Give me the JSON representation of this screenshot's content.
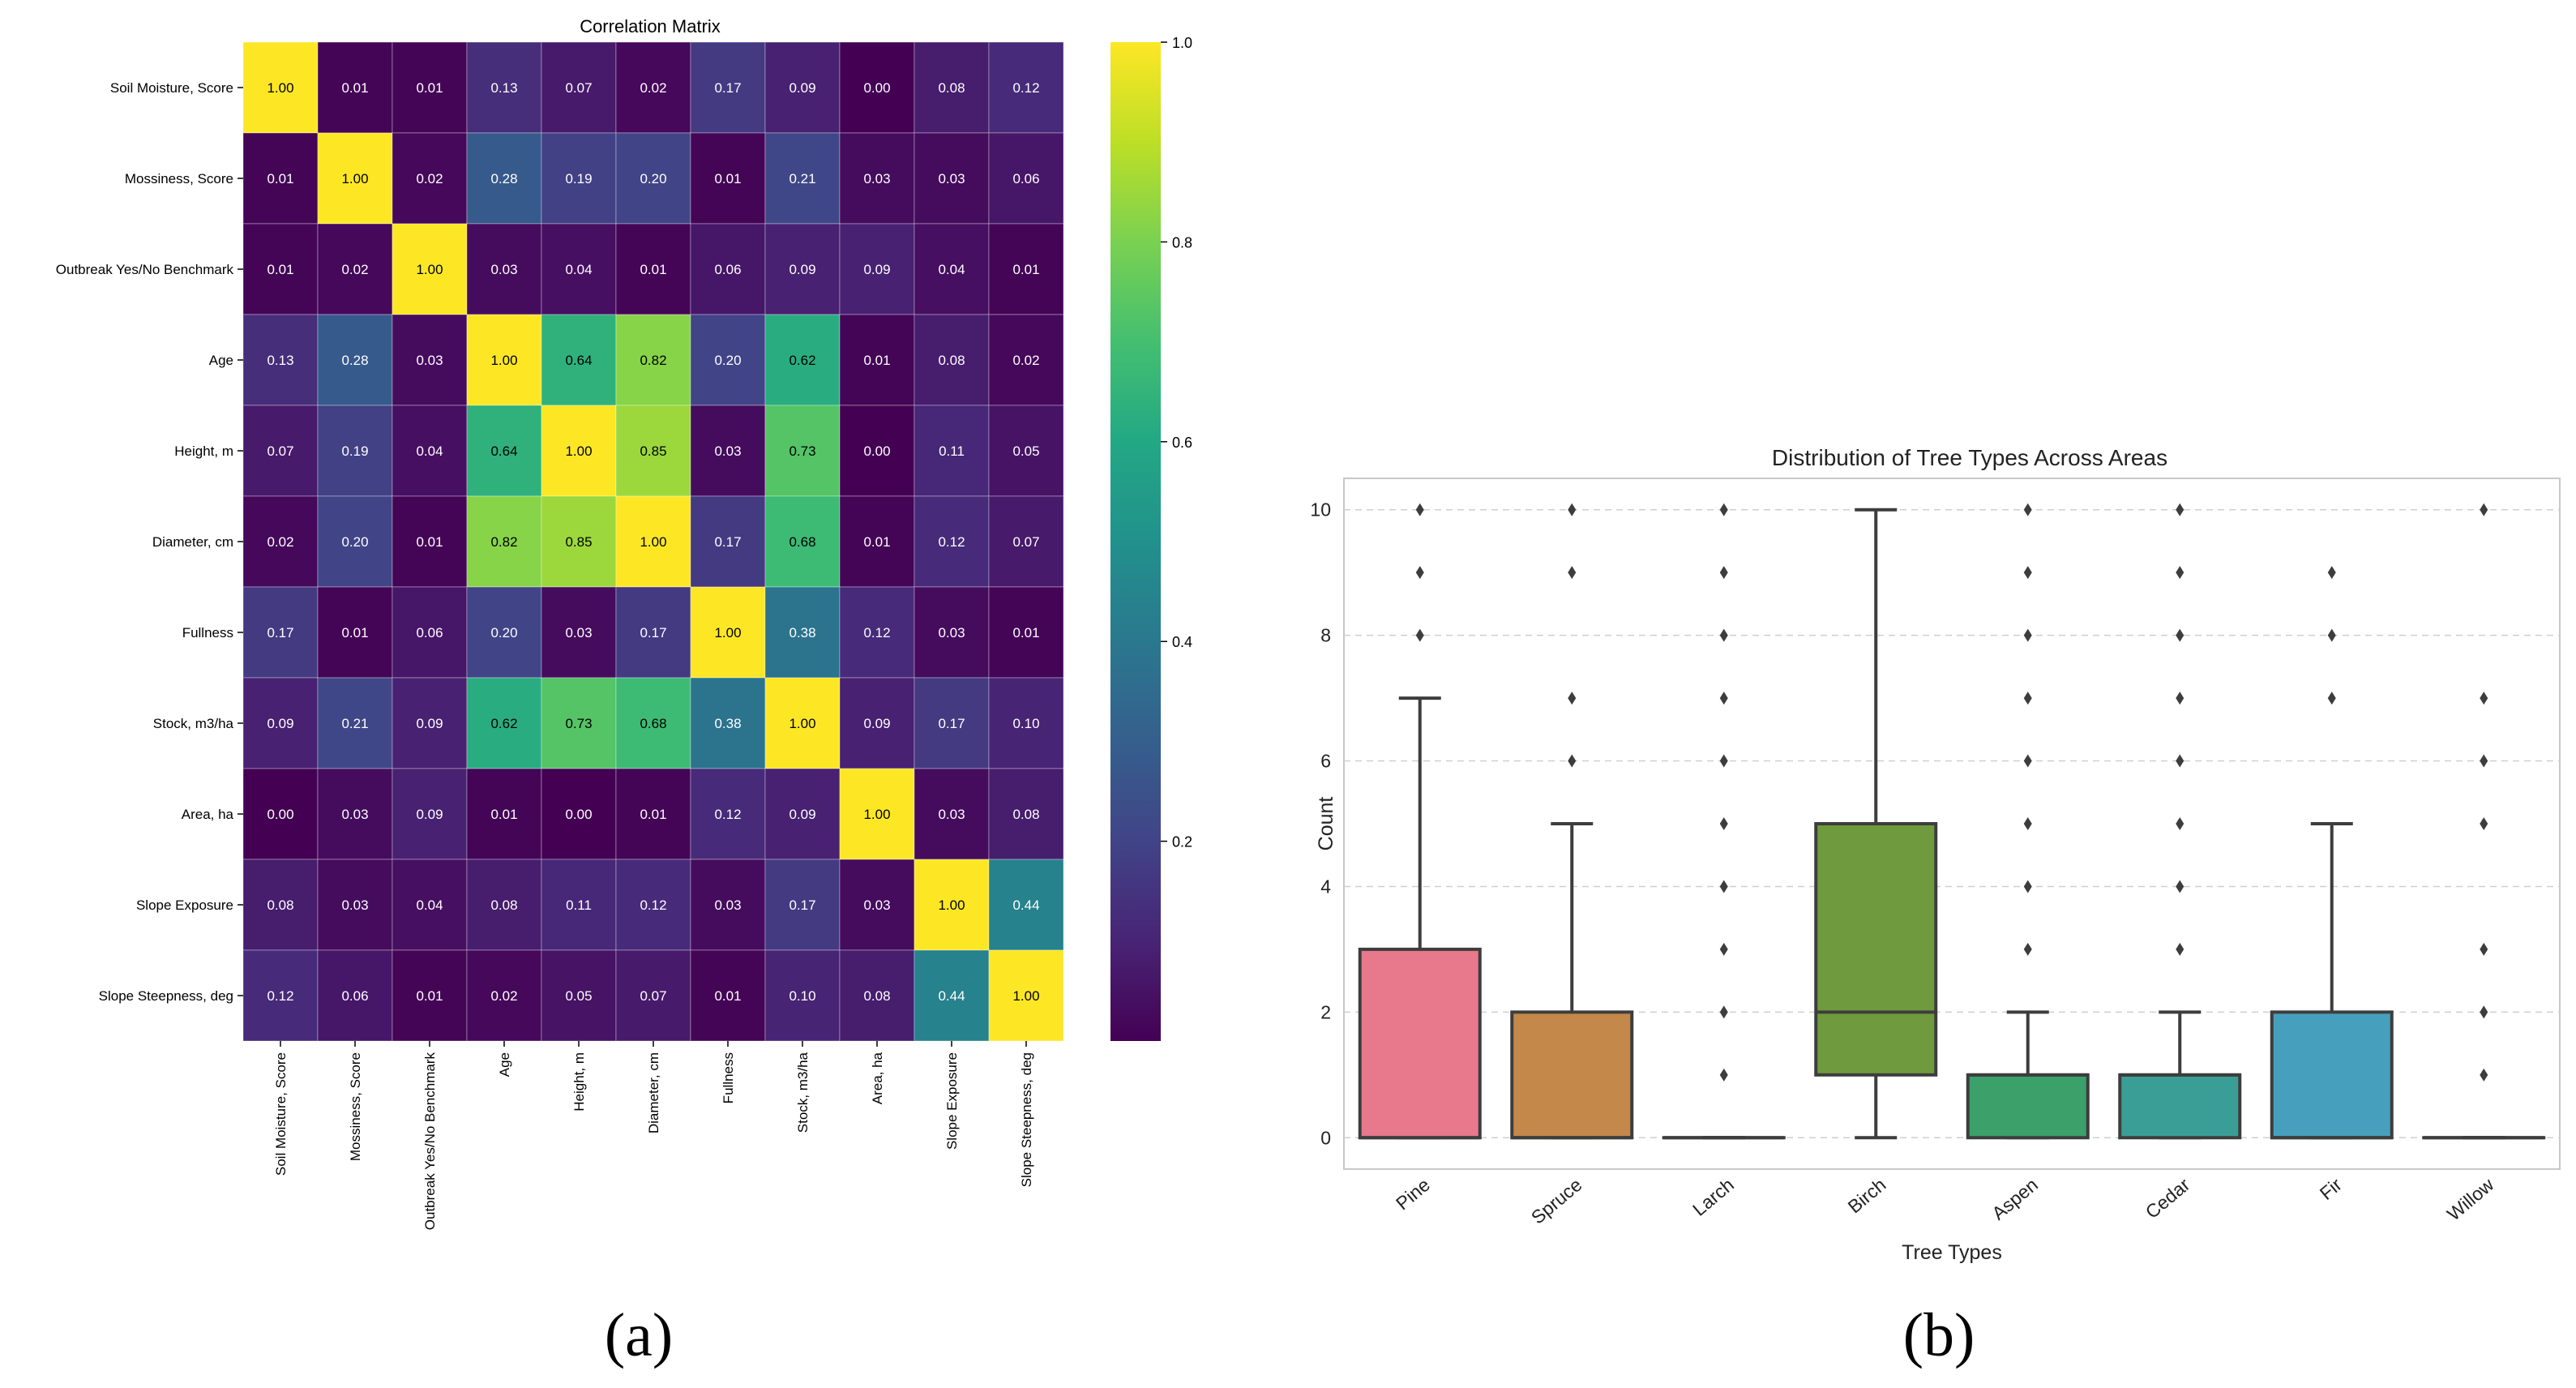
{
  "panel_labels": [
    "(a)",
    "(b)"
  ],
  "chart_data": [
    {
      "type": "heatmap",
      "title": "Correlation Matrix",
      "labels": [
        "Soil Moisture, Score",
        "Mossiness, Score",
        "Outbreak Yes/No Benchmark",
        "Age",
        "Height, m",
        "Diameter, cm",
        "Fullness",
        "Stock, m3/ha",
        "Area, ha",
        "Slope Exposure",
        "Slope Steepness, deg"
      ],
      "matrix": [
        [
          1.0,
          0.01,
          0.01,
          0.13,
          0.07,
          0.02,
          0.17,
          0.09,
          0.0,
          0.08,
          0.12
        ],
        [
          0.01,
          1.0,
          0.02,
          0.28,
          0.19,
          0.2,
          0.01,
          0.21,
          0.03,
          0.03,
          0.06
        ],
        [
          0.01,
          0.02,
          1.0,
          0.03,
          0.04,
          0.01,
          0.06,
          0.09,
          0.09,
          0.04,
          0.01
        ],
        [
          0.13,
          0.28,
          0.03,
          1.0,
          0.64,
          0.82,
          0.2,
          0.62,
          0.01,
          0.08,
          0.02
        ],
        [
          0.07,
          0.19,
          0.04,
          0.64,
          1.0,
          0.85,
          0.03,
          0.73,
          0.0,
          0.11,
          0.05
        ],
        [
          0.02,
          0.2,
          0.01,
          0.82,
          0.85,
          1.0,
          0.17,
          0.68,
          0.01,
          0.12,
          0.07
        ],
        [
          0.17,
          0.01,
          0.06,
          0.2,
          0.03,
          0.17,
          1.0,
          0.38,
          0.12,
          0.03,
          0.01
        ],
        [
          0.09,
          0.21,
          0.09,
          0.62,
          0.73,
          0.68,
          0.38,
          1.0,
          0.09,
          0.17,
          0.1
        ],
        [
          0.0,
          0.03,
          0.09,
          0.01,
          0.0,
          0.01,
          0.12,
          0.09,
          1.0,
          0.03,
          0.08
        ],
        [
          0.08,
          0.03,
          0.04,
          0.08,
          0.11,
          0.12,
          0.03,
          0.17,
          0.03,
          1.0,
          0.44
        ],
        [
          0.12,
          0.06,
          0.01,
          0.02,
          0.05,
          0.07,
          0.01,
          0.1,
          0.08,
          0.44,
          1.0
        ]
      ],
      "colorbar": {
        "range": [
          0.0,
          1.0
        ],
        "ticks": [
          0.2,
          0.4,
          0.6,
          0.8,
          1.0
        ],
        "tick_labels": [
          "0.2",
          "0.4",
          "0.6",
          "0.8",
          "1.0"
        ],
        "colormap": "viridis"
      }
    },
    {
      "type": "box",
      "title": "Distribution of Tree Types Across Areas",
      "xlabel": "Tree Types",
      "ylabel": "Count",
      "ylim": [
        -0.5,
        10.5
      ],
      "yticks": [
        0,
        2,
        4,
        6,
        8,
        10
      ],
      "ytick_labels": [
        "0",
        "2",
        "4",
        "6",
        "8",
        "10"
      ],
      "grid": "horizontal dashed",
      "categories": [
        "Pine",
        "Spruce",
        "Larch",
        "Birch",
        "Aspen",
        "Cedar",
        "Fir",
        "Willow"
      ],
      "boxes": [
        {
          "q1": 0,
          "median": 0,
          "q3": 3,
          "whisker_low": 0,
          "whisker_high": 7,
          "outliers": [
            8,
            9,
            10
          ],
          "color": "#e8788c"
        },
        {
          "q1": 0,
          "median": 0,
          "q3": 2,
          "whisker_low": 0,
          "whisker_high": 5,
          "outliers": [
            6,
            7,
            9,
            10
          ],
          "color": "#c4884a"
        },
        {
          "q1": 0,
          "median": 0,
          "q3": 0,
          "whisker_low": 0,
          "whisker_high": 0,
          "outliers": [
            1,
            2,
            3,
            4,
            5,
            6,
            7,
            8,
            9,
            10
          ],
          "color": "#a49a3e"
        },
        {
          "q1": 1,
          "median": 2,
          "q3": 5,
          "whisker_low": 0,
          "whisker_high": 10,
          "outliers": [],
          "color": "#6f9a3d"
        },
        {
          "q1": 0,
          "median": 1,
          "q3": 1,
          "whisker_low": 0,
          "whisker_high": 2,
          "outliers": [
            3,
            4,
            5,
            6,
            7,
            8,
            9,
            10
          ],
          "color": "#3ba06a"
        },
        {
          "q1": 0,
          "median": 1,
          "q3": 1,
          "whisker_low": 0,
          "whisker_high": 2,
          "outliers": [
            3,
            4,
            5,
            6,
            7,
            8,
            9,
            10
          ],
          "color": "#3a9e96"
        },
        {
          "q1": 0,
          "median": 0,
          "q3": 2,
          "whisker_low": 0,
          "whisker_high": 5,
          "outliers": [
            7,
            8,
            9
          ],
          "color": "#46a0bd"
        },
        {
          "q1": 0,
          "median": 0,
          "q3": 0,
          "whisker_low": 0,
          "whisker_high": 0,
          "outliers": [
            1,
            2,
            3,
            5,
            6,
            7,
            10
          ],
          "color": "#8f8fd8"
        }
      ]
    }
  ]
}
